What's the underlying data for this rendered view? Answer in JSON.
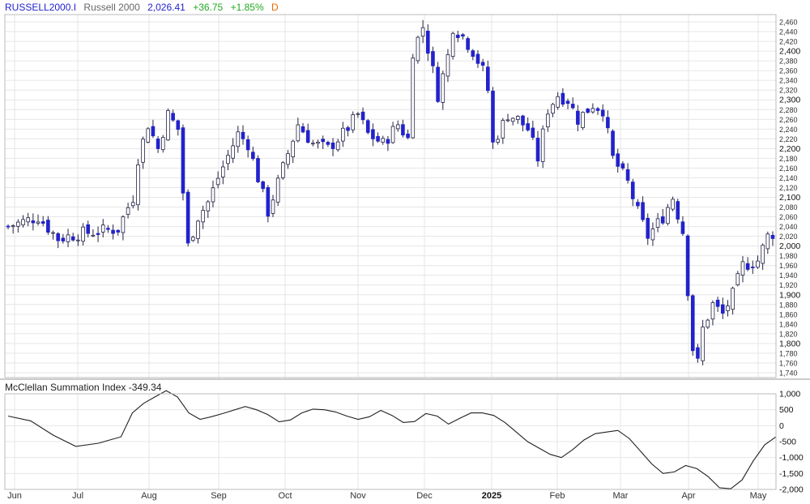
{
  "header": {
    "symbol": "RUSSELL2000.I",
    "name": "Russell 2000",
    "price": "2,026.41",
    "change": "+36.75",
    "change_pct": "+1.85%",
    "interval": "D"
  },
  "indicator": {
    "title": "McClellan Summation Index",
    "value": "-349.34"
  },
  "colors": {
    "up": "#ffffff",
    "down": "#2222cc",
    "wick": "#222244",
    "grid": "#e6e6e6",
    "line": "#222222"
  },
  "chart_data": [
    {
      "type": "candlestick",
      "title": "Russell 2000",
      "ylim": [
        1730,
        2475
      ],
      "y_ticks": [
        "1,740",
        "1,760",
        "1,780",
        "1,800",
        "1,820",
        "1,840",
        "1,860",
        "1,880",
        "1,900",
        "1,920",
        "1,940",
        "1,960",
        "1,980",
        "2,000",
        "2,020",
        "2,040",
        "2,060",
        "2,080",
        "2,100",
        "2,120",
        "2,140",
        "2,160",
        "2,180",
        "2,200",
        "2,220",
        "2,240",
        "2,260",
        "2,280",
        "2,300",
        "2,320",
        "2,340",
        "2,360",
        "2,380",
        "2,400",
        "2,420",
        "2,440",
        "2,460"
      ],
      "x_labels": [
        "Jun",
        "Jul",
        "Aug",
        "Sep",
        "Oct",
        "Nov",
        "Dec",
        "2025",
        "Feb",
        "Mar",
        "Apr",
        "May"
      ],
      "close_path": [
        [
          0,
          2040
        ],
        [
          6,
          2060
        ],
        [
          10,
          2015
        ],
        [
          14,
          2025
        ],
        [
          18,
          2030
        ],
        [
          22,
          2035
        ],
        [
          24,
          2080
        ],
        [
          25,
          2100
        ],
        [
          26,
          2180
        ],
        [
          28,
          2250
        ],
        [
          30,
          2200
        ],
        [
          32,
          2270
        ],
        [
          34,
          2240
        ],
        [
          35,
          2110
        ],
        [
          36,
          2000
        ],
        [
          38,
          2060
        ],
        [
          40,
          2090
        ],
        [
          42,
          2140
        ],
        [
          46,
          2230
        ],
        [
          48,
          2210
        ],
        [
          50,
          2140
        ],
        [
          52,
          2070
        ],
        [
          55,
          2160
        ],
        [
          58,
          2250
        ],
        [
          61,
          2210
        ],
        [
          64,
          2200
        ],
        [
          67,
          2230
        ],
        [
          70,
          2270
        ],
        [
          72,
          2230
        ],
        [
          75,
          2210
        ],
        [
          78,
          2250
        ],
        [
          80,
          2220
        ],
        [
          81,
          2400
        ],
        [
          83,
          2450
        ],
        [
          85,
          2360
        ],
        [
          86,
          2310
        ],
        [
          88,
          2390
        ],
        [
          89,
          2450
        ],
        [
          91,
          2430
        ],
        [
          93,
          2400
        ],
        [
          95,
          2360
        ],
        [
          96,
          2320
        ],
        [
          97,
          2210
        ],
        [
          100,
          2270
        ],
        [
          102,
          2260
        ],
        [
          104,
          2240
        ],
        [
          106,
          2180
        ],
        [
          107,
          2230
        ],
        [
          108,
          2280
        ],
        [
          110,
          2310
        ],
        [
          112,
          2300
        ],
        [
          114,
          2260
        ],
        [
          117,
          2290
        ],
        [
          119,
          2280
        ],
        [
          121,
          2180
        ],
        [
          124,
          2130
        ],
        [
          126,
          2070
        ],
        [
          128,
          2020
        ],
        [
          131,
          2060
        ],
        [
          133,
          2100
        ],
        [
          135,
          2030
        ],
        [
          136,
          1910
        ],
        [
          137,
          1790
        ],
        [
          138,
          1760
        ],
        [
          139,
          1830
        ],
        [
          141,
          1880
        ],
        [
          143,
          1860
        ],
        [
          145,
          1900
        ],
        [
          147,
          1960
        ],
        [
          150,
          1970
        ],
        [
          152,
          2020
        ],
        [
          153,
          2026
        ]
      ],
      "bars": 154
    },
    {
      "type": "line",
      "title": "McClellan Summation Index",
      "ylim": [
        -2000,
        1000
      ],
      "y_ticks": [
        "1,000",
        "500",
        "0",
        "-500",
        "-1,000",
        "-1,500",
        "-2,000"
      ],
      "x_labels": [
        "Jun",
        "Jul",
        "Aug",
        "Sep",
        "Oct",
        "Nov",
        "Dec",
        "2025",
        "Feb",
        "Mar",
        "Apr",
        "May"
      ],
      "points": [
        [
          0,
          300
        ],
        [
          4,
          150
        ],
        [
          8,
          -300
        ],
        [
          12,
          -650
        ],
        [
          16,
          -550
        ],
        [
          18,
          -450
        ],
        [
          20,
          -350
        ],
        [
          22,
          400
        ],
        [
          24,
          700
        ],
        [
          26,
          900
        ],
        [
          28,
          1100
        ],
        [
          30,
          900
        ],
        [
          32,
          400
        ],
        [
          34,
          200
        ],
        [
          36,
          280
        ],
        [
          38,
          380
        ],
        [
          42,
          600
        ],
        [
          44,
          500
        ],
        [
          46,
          350
        ],
        [
          48,
          120
        ],
        [
          50,
          180
        ],
        [
          52,
          400
        ],
        [
          54,
          520
        ],
        [
          56,
          500
        ],
        [
          58,
          430
        ],
        [
          60,
          300
        ],
        [
          62,
          200
        ],
        [
          64,
          280
        ],
        [
          66,
          480
        ],
        [
          68,
          320
        ],
        [
          70,
          100
        ],
        [
          72,
          130
        ],
        [
          74,
          380
        ],
        [
          76,
          300
        ],
        [
          78,
          50
        ],
        [
          80,
          230
        ],
        [
          82,
          400
        ],
        [
          84,
          400
        ],
        [
          86,
          320
        ],
        [
          88,
          100
        ],
        [
          90,
          -200
        ],
        [
          92,
          -500
        ],
        [
          94,
          -700
        ],
        [
          96,
          -900
        ],
        [
          98,
          -1000
        ],
        [
          100,
          -750
        ],
        [
          102,
          -450
        ],
        [
          104,
          -250
        ],
        [
          106,
          -200
        ],
        [
          108,
          -150
        ],
        [
          110,
          -400
        ],
        [
          112,
          -800
        ],
        [
          114,
          -1200
        ],
        [
          116,
          -1500
        ],
        [
          118,
          -1450
        ],
        [
          120,
          -1250
        ],
        [
          122,
          -1350
        ],
        [
          124,
          -1600
        ],
        [
          126,
          -1950
        ],
        [
          128,
          -1980
        ],
        [
          130,
          -1700
        ],
        [
          132,
          -1100
        ],
        [
          134,
          -600
        ],
        [
          136,
          -350
        ]
      ],
      "n": 137
    }
  ]
}
